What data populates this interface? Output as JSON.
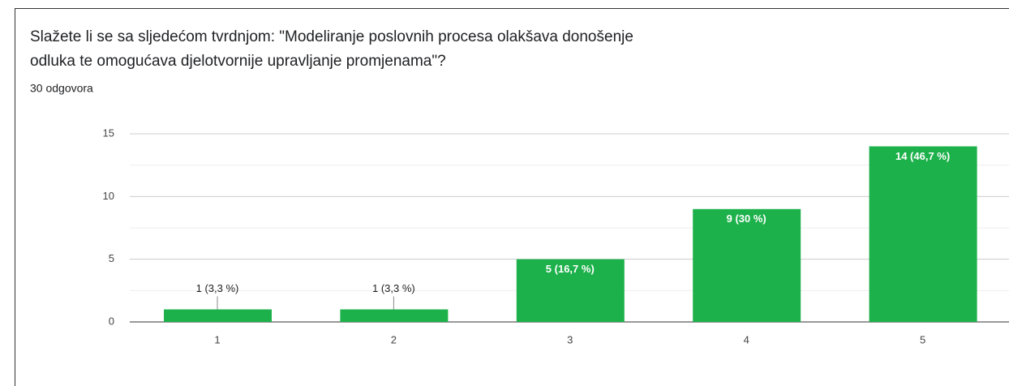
{
  "chart_data": {
    "type": "bar",
    "title_lines": [
      "Slažete li se sa sljedećom tvrdnjom: \"Modeliranje poslovnih procesa olakšava donošenje",
      "odluka te omogućava djelotvornije upravljanje promjenama\"?"
    ],
    "subtitle": "30 odgovora",
    "categories": [
      "1",
      "2",
      "3",
      "4",
      "5"
    ],
    "values": [
      1,
      1,
      5,
      9,
      14
    ],
    "value_labels": [
      "1 (3,3 %)",
      "1 (3,3 %)",
      "5 (16,7 %)",
      "9 (30 %)",
      "14 (46,7 %)"
    ],
    "color": "#1db14b",
    "ylim": [
      0,
      15
    ],
    "yticks": [
      0,
      5,
      10,
      15
    ],
    "grid": true,
    "minor_grid": true
  }
}
